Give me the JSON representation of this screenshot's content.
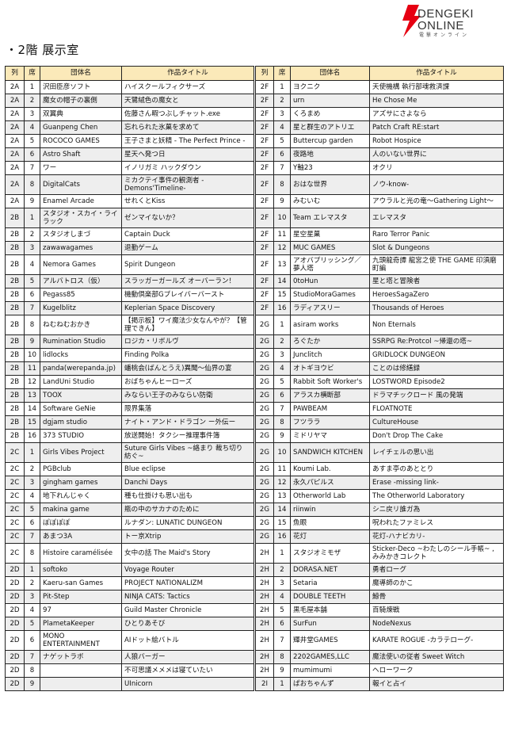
{
  "page": {
    "title": "・2階 展示室"
  },
  "table": {
    "headers": [
      "列",
      "席",
      "団体名",
      "作品タイトル",
      "列",
      "席",
      "団体名",
      "作品タイトル"
    ],
    "rows": [
      [
        "2A",
        "1",
        "沢田臣彦ソフト",
        "ハイスクールフィクサーズ",
        "2F",
        "1",
        "ヨクニク",
        "天使機構 執行部魂救済課"
      ],
      [
        "2A",
        "2",
        "魔女の帽子の裏側",
        "天鷺絨色の魔女と",
        "2F",
        "2",
        "urn",
        "He Chose Me"
      ],
      [
        "2A",
        "3",
        "双翼典",
        "佐藤さん暇つぶしチャット.exe",
        "2F",
        "3",
        "くろまめ",
        "アズサにさよなら"
      ],
      [
        "2A",
        "4",
        "Guanpeng Chen",
        "忘れられた氷菓を求めて",
        "2F",
        "4",
        "星と群生のアトリエ",
        "Patch Craft RE:start"
      ],
      [
        "2A",
        "5",
        "ROCOCO GAMES",
        "王子さまと妖精 - The Perfect Prince -",
        "2F",
        "5",
        "Buttercup garden",
        "Robot Hospice"
      ],
      [
        "2A",
        "6",
        "Astro Shaft",
        "星天へ発つ日",
        "2F",
        "6",
        "夜路地",
        "人のいない世界に"
      ],
      [
        "2A",
        "7",
        "ワー",
        "イノリガミ ハックダウン",
        "2F",
        "7",
        "Y軸23",
        "オクリ"
      ],
      [
        "2A",
        "8",
        "DigitalCats",
        "ミカクテイ事件の観測者 -Demons'Timeline-",
        "2F",
        "8",
        "おはな世界",
        "ノウ-know-"
      ],
      [
        "2A",
        "9",
        "Enamel Arcade",
        "せれくとKiss",
        "2F",
        "9",
        "みむいむ",
        "アウラルと光の竜〜Gathering Light〜"
      ],
      [
        "2B",
        "1",
        "スタジオ・スカイ・ライラック",
        "ゼンマイないか？",
        "2F",
        "10",
        "Team エレマスタ",
        "エレマスタ"
      ],
      [
        "2B",
        "2",
        "スタジオしまづ",
        "Captain Duck",
        "2F",
        "11",
        "星空星菓",
        "Raro Terror Panic"
      ],
      [
        "2B",
        "3",
        "zawawagames",
        "退勤ゲーム",
        "2F",
        "12",
        "MUC GAMES",
        "Slot & Dungeons"
      ],
      [
        "2B",
        "4",
        "Nemora Games",
        "Spirit Dungeon",
        "2F",
        "13",
        "アオバプリッシング／夢人塔",
        "九頭龍奇譚 龍宮之使 THE GAME 印須磨町編"
      ],
      [
        "2B",
        "5",
        "アルバトロス（仮）",
        "スラッガーガールズ オーバーラン！",
        "2F",
        "14",
        "0toHun",
        "星と塔と冒険者"
      ],
      [
        "2B",
        "6",
        "Pegass85",
        "機動倶楽部Gブレイバーバースト",
        "2F",
        "15",
        "StudioMoraGames",
        "HeroesSagaZero"
      ],
      [
        "2B",
        "7",
        "Kugelblitz",
        "Keplerian Space Discovery",
        "2F",
        "16",
        "ラディアスリー",
        "Thousands of Heroes"
      ],
      [
        "2B",
        "8",
        "ねむねむおかき",
        "【掲示板】ワイ魔法少女なんやが？【管理できん】",
        "2G",
        "1",
        "asiram works",
        "Non Eternals"
      ],
      [
        "2B",
        "9",
        "Rumination Studio",
        "ロジカ・リボルヴ",
        "2G",
        "2",
        "ろぐたか",
        "SSRPG Re:Protcol ~帰還の塔~"
      ],
      [
        "2B",
        "10",
        "lidlocks",
        "Finding Polka",
        "2G",
        "3",
        "Junclitch",
        "GRIDLOCK DUNGEON"
      ],
      [
        "2B",
        "11",
        "panda(werepanda.jp)",
        "蟠桃会(ばんとうえ)異聞〜仙界の宴",
        "2G",
        "4",
        "オトギヨウビ",
        "ことのは修繕録"
      ],
      [
        "2B",
        "12",
        "LandUni Studio",
        "おばちゃんヒーローズ",
        "2G",
        "5",
        "Rabbit Soft Worker's",
        "LOSTWORD Episode2"
      ],
      [
        "2B",
        "13",
        "TOOX",
        "みならい王子のみならい防衛",
        "2G",
        "6",
        "アラスカ横断部",
        "ドラマチックロード 風の発端"
      ],
      [
        "2B",
        "14",
        "Software GeNie",
        "限界集落",
        "2G",
        "7",
        "PAWBEAM",
        "FLOATNOTE"
      ],
      [
        "2B",
        "15",
        "dgjam studio",
        "ナイト・アンド・ドラゴン ー外伝ー",
        "2G",
        "8",
        "フツララ",
        "CultureHouse"
      ],
      [
        "2B",
        "16",
        "373 STUDIO",
        "放送開始！タクシー推理事件簿",
        "2G",
        "9",
        "ミドリヤマ",
        "Don't Drop The Cake"
      ],
      [
        "2C",
        "1",
        "Girls Vibes Project",
        "Suture Girls Vibes ~絡まり 裁ち切り 紡ぐ~",
        "2G",
        "10",
        "SANDWICH KITCHEN",
        "レイチェルの思い出"
      ],
      [
        "2C",
        "2",
        "PGBclub",
        "Blue eclipse",
        "2G",
        "11",
        "Koumi Lab.",
        "あすま亭のあととり"
      ],
      [
        "2C",
        "3",
        "gingham games",
        "Danchi Days",
        "2G",
        "12",
        "永久パピルス",
        "Erase -missing link-"
      ],
      [
        "2C",
        "4",
        "地下れんじゃく",
        "種も仕掛けも思い出も",
        "2G",
        "13",
        "Otherworld Lab",
        "The Otherworld Laboratory"
      ],
      [
        "2C",
        "5",
        "makina game",
        "瓶の中のサカナのために",
        "2G",
        "14",
        "riinwin",
        "シニ戻リ誰ガ為"
      ],
      [
        "2C",
        "6",
        "ぽぽぽぽ",
        "ルナダン: LUNATIC DUNGEON",
        "2G",
        "15",
        "魚眼",
        "呪われたファミレス"
      ],
      [
        "2C",
        "7",
        "あまつ3A",
        "トー京Xtrip",
        "2G",
        "16",
        "花灯",
        "花灯-ハナビカリ-"
      ],
      [
        "2C",
        "8",
        "Histoire caramélisée",
        "女中の話 The Maid's Story",
        "2H",
        "1",
        "スタジオミモザ",
        "Sticker-Deco ~わたしのシール手帳~ , みみかきコレクト"
      ],
      [
        "2D",
        "1",
        "softoko",
        "Voyage Router",
        "2H",
        "2",
        "DORASA.NET",
        "勇者ローグ"
      ],
      [
        "2D",
        "2",
        "Kaeru-san Games",
        "PROJECT NATIONALIZM",
        "2H",
        "3",
        "Setaria",
        "魔導師のかこ"
      ],
      [
        "2D",
        "3",
        "Pit-Step",
        "NINJA CATS: Tactics",
        "2H",
        "4",
        "DOUBLE TEETH",
        "鯨骨"
      ],
      [
        "2D",
        "4",
        "97",
        "Guild Master Chronicle",
        "2H",
        "5",
        "黒毛屋本舗",
        "百騎煉戦"
      ],
      [
        "2D",
        "5",
        "PlametaKeeper",
        "ひとりあそび",
        "2H",
        "6",
        "SurFun",
        "NodeNexus"
      ],
      [
        "2D",
        "6",
        "MONO ENTERTAINMENT",
        "AIドット絵バトル",
        "2H",
        "7",
        "輝井堂GAMES",
        "KARATE ROGUE -カラテローグ-"
      ],
      [
        "2D",
        "7",
        "ナゲットラボ",
        "人狼バーガー",
        "2H",
        "8",
        "2202GAMES,LLC",
        "魔法使いの従者 Sweet Witch"
      ],
      [
        "2D",
        "8",
        "",
        "不可思議メメメは寝ていたい",
        "2H",
        "9",
        "mumimumi",
        "ヘローワーク"
      ],
      [
        "2D",
        "9",
        "",
        "UInicorn",
        "2I",
        "1",
        "ぱおちゃんず",
        "報イと占イ"
      ]
    ],
    "tall_rows": [
      7,
      9,
      12,
      16,
      25,
      32,
      38
    ]
  },
  "logo": {
    "text": "DENGEKI ONLINE",
    "subtext": "電撃オンライン",
    "accent": "#e60012"
  },
  "colors": {
    "header_bg": "#fbe9b9",
    "stripe": "#eeeeee"
  }
}
